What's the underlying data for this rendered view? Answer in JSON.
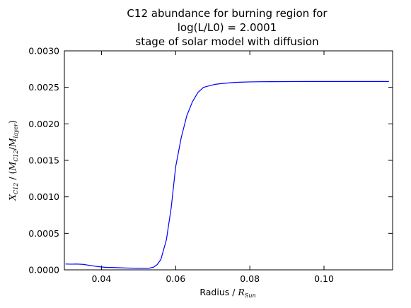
{
  "chart_data": {
    "type": "line",
    "title_lines": [
      "C12 abundance for burning region for",
      "log(L/L0) = 2.0001",
      "stage of solar model with diffusion"
    ],
    "xlabel": {
      "text": "Radius / ",
      "math_base": "R",
      "math_sub": "Sun"
    },
    "ylabel": {
      "math_base": "X",
      "math_sub": "C12",
      "middle": " / (",
      "num_base": "M",
      "num_sub": "C12",
      "slash": "/",
      "den_base": "M",
      "den_sub": "layer",
      "close": ")"
    },
    "xlim": [
      0.03,
      0.1185
    ],
    "ylim": [
      0.0,
      0.003
    ],
    "xticks": [
      0.04,
      0.06,
      0.08,
      0.1
    ],
    "xtick_labels": [
      "0.04",
      "0.06",
      "0.08",
      "0.10"
    ],
    "yticks": [
      0.0,
      0.0005,
      0.001,
      0.0015,
      0.002,
      0.0025,
      0.003
    ],
    "ytick_labels": [
      "0.0000",
      "0.0005",
      "0.0010",
      "0.0015",
      "0.0020",
      "0.0025",
      "0.0030"
    ],
    "grid": false,
    "line_color": "#0000ff",
    "series": [
      {
        "x": [
          0.0303,
          0.0318,
          0.0333,
          0.035,
          0.037,
          0.039,
          0.041,
          0.044,
          0.047,
          0.05,
          0.0525,
          0.054,
          0.055,
          0.056,
          0.0575,
          0.0588,
          0.06,
          0.0615,
          0.063,
          0.0645,
          0.066,
          0.0675,
          0.069,
          0.0705,
          0.072,
          0.074,
          0.076,
          0.078,
          0.08,
          0.083,
          0.086,
          0.09,
          0.095,
          0.1,
          0.105,
          0.11,
          0.1175
        ],
        "y": [
          8e-05,
          7.8e-05,
          8e-05,
          7.5e-05,
          6e-05,
          4.5e-05,
          3.5e-05,
          3e-05,
          2.5e-05,
          2.2e-05,
          2e-05,
          3.5e-05,
          7e-05,
          0.00014,
          0.00041,
          0.00085,
          0.00141,
          0.00181,
          0.00211,
          0.0023,
          0.00243,
          0.0025,
          0.00252,
          0.00254,
          0.00255,
          0.00256,
          0.002568,
          0.002572,
          0.002575,
          0.002577,
          0.002578,
          0.002579,
          0.00258,
          0.00258,
          0.00258,
          0.00258,
          0.00258
        ]
      }
    ]
  }
}
